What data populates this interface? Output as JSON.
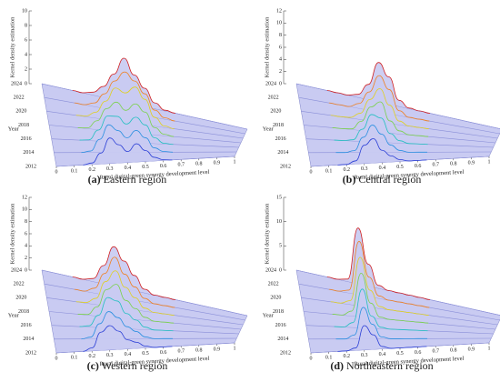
{
  "chart_data": [
    {
      "type": "ridgeline",
      "label": "(a)",
      "caption": "Eastern region",
      "zlabel": "Kernel density estimation",
      "ylabel": "Year",
      "xlabel": "Rural digital-green synergy development level",
      "fill": "#c9cbf2",
      "categories": [
        "2012",
        "2014",
        "2016",
        "2018",
        "2020",
        "2022",
        "2024"
      ],
      "x": [
        0.15,
        0.2,
        0.25,
        0.3,
        0.35,
        0.4,
        0.45,
        0.5,
        0.55,
        0.6,
        0.65
      ],
      "series": [
        {
          "color": "#2b3fd6",
          "values": [
            0,
            0.2,
            1.5,
            3.5,
            2.5,
            1.5,
            2.5,
            1.5,
            0.5,
            0.1,
            0
          ]
        },
        {
          "color": "#2a8fe0",
          "values": [
            0,
            0.2,
            1.8,
            3.8,
            3,
            2,
            3,
            2,
            0.6,
            0.1,
            0
          ]
        },
        {
          "color": "#22c0c0",
          "values": [
            0,
            0.1,
            1.5,
            3.5,
            3.5,
            2.5,
            3.5,
            2.5,
            0.8,
            0.1,
            0
          ]
        },
        {
          "color": "#7ad24a",
          "values": [
            0,
            0.1,
            1.2,
            3,
            4,
            3,
            4,
            3,
            1,
            0.2,
            0
          ]
        },
        {
          "color": "#e0d020",
          "values": [
            0,
            0.1,
            0.8,
            2.5,
            4.5,
            4,
            5,
            3.5,
            1.2,
            0.2,
            0
          ]
        },
        {
          "color": "#f08020",
          "values": [
            0,
            0,
            0.5,
            2,
            4,
            5.5,
            4.5,
            3,
            1,
            0.2,
            0
          ]
        },
        {
          "color": "#d02020",
          "values": [
            0,
            0,
            0.4,
            1.5,
            3.5,
            6,
            4,
            2.5,
            0.8,
            0.1,
            0
          ]
        }
      ],
      "xlim": [
        0,
        1
      ],
      "xticks": [
        0,
        0.1,
        0.2,
        0.3,
        0.4,
        0.5,
        0.6,
        0.7,
        0.8,
        0.9,
        1
      ],
      "zlim": [
        0,
        10
      ],
      "zticks": [
        0,
        2,
        4,
        6,
        8,
        10
      ]
    },
    {
      "type": "ridgeline",
      "label": "(b)",
      "caption": "Central region",
      "zlabel": "Kernel density estimation",
      "ylabel": "Year",
      "xlabel": "Rural digital-green synergy development level",
      "fill": "#c9cbf2",
      "categories": [
        "2012",
        "2014",
        "2016",
        "2018",
        "2020",
        "2022",
        "2024"
      ],
      "x": [
        0.15,
        0.2,
        0.25,
        0.3,
        0.35,
        0.4,
        0.45,
        0.5,
        0.55,
        0.6,
        0.65
      ],
      "series": [
        {
          "color": "#2b3fd6",
          "values": [
            0,
            0,
            0.5,
            3,
            4,
            2,
            1,
            0.3,
            0,
            0,
            0
          ]
        },
        {
          "color": "#2a8fe0",
          "values": [
            0,
            0,
            0.3,
            2.5,
            4.5,
            3,
            1.2,
            0.3,
            0,
            0,
            0
          ]
        },
        {
          "color": "#22c0c0",
          "values": [
            0,
            0,
            0.2,
            2,
            4.5,
            4,
            1.5,
            0.4,
            0,
            0,
            0
          ]
        },
        {
          "color": "#7ad24a",
          "values": [
            0,
            0,
            0.1,
            1.5,
            4,
            5,
            2,
            0.5,
            0,
            0,
            0
          ]
        },
        {
          "color": "#e0d020",
          "values": [
            0,
            0,
            0.1,
            1,
            3.5,
            5.5,
            3,
            0.6,
            0,
            0,
            0
          ]
        },
        {
          "color": "#f08020",
          "values": [
            0,
            0,
            0,
            0.8,
            3,
            6,
            4,
            0.8,
            0,
            0,
            0
          ]
        },
        {
          "color": "#d02020",
          "values": [
            0,
            0,
            0,
            0.5,
            2.5,
            6.5,
            4.5,
            1,
            0.1,
            0,
            0
          ]
        }
      ],
      "xlim": [
        0,
        1
      ],
      "xticks": [
        0,
        0.1,
        0.2,
        0.3,
        0.4,
        0.5,
        0.6,
        0.7,
        0.8,
        0.9,
        1
      ],
      "zlim": [
        0,
        12
      ],
      "zticks": [
        0,
        2,
        4,
        6,
        8,
        10,
        12
      ]
    },
    {
      "type": "ridgeline",
      "label": "(c)",
      "caption": "Western region",
      "zlabel": "Kernel density estimation",
      "ylabel": "Year",
      "xlabel": "Rural digital-green synergy development level",
      "fill": "#c9cbf2",
      "categories": [
        "2012",
        "2014",
        "2016",
        "2018",
        "2020",
        "2022",
        "2024"
      ],
      "x": [
        0.15,
        0.2,
        0.25,
        0.3,
        0.35,
        0.4,
        0.45,
        0.5,
        0.55,
        0.6,
        0.65
      ],
      "series": [
        {
          "color": "#2b3fd6",
          "values": [
            0,
            0.5,
            3,
            4,
            3,
            1.5,
            1,
            0.3,
            0,
            0,
            0
          ]
        },
        {
          "color": "#2a8fe0",
          "values": [
            0,
            0.3,
            2.5,
            4.5,
            3.5,
            2,
            1.2,
            0.3,
            0,
            0,
            0
          ]
        },
        {
          "color": "#22c0c0",
          "values": [
            0,
            0.2,
            2,
            5,
            4.5,
            2.5,
            1.5,
            0.4,
            0,
            0,
            0
          ]
        },
        {
          "color": "#7ad24a",
          "values": [
            0,
            0.1,
            1.5,
            4.5,
            5.5,
            3,
            1.8,
            0.5,
            0,
            0,
            0
          ]
        },
        {
          "color": "#e0d020",
          "values": [
            0,
            0.1,
            1,
            4,
            6,
            3.5,
            2,
            0.5,
            0,
            0,
            0
          ]
        },
        {
          "color": "#f08020",
          "values": [
            0,
            0,
            0.8,
            3.5,
            6.5,
            4,
            2.2,
            0.6,
            0,
            0,
            0
          ]
        },
        {
          "color": "#d02020",
          "values": [
            0,
            0,
            0.5,
            3,
            6.5,
            4.5,
            2.5,
            0.6,
            0,
            0,
            0
          ]
        }
      ],
      "xlim": [
        0,
        1
      ],
      "xticks": [
        0,
        0.1,
        0.2,
        0.3,
        0.4,
        0.5,
        0.6,
        0.7,
        0.8,
        0.9,
        1
      ],
      "zlim": [
        0,
        12
      ],
      "zticks": [
        0,
        2,
        4,
        6,
        8,
        10,
        12
      ]
    },
    {
      "type": "ridgeline",
      "label": "(d)",
      "caption": "Northeastern region",
      "zlabel": "Kernel density estimation",
      "ylabel": "Year",
      "xlabel": "Rural digital-green synergy development level",
      "fill": "#c9cbf2",
      "categories": [
        "2012",
        "2014",
        "2016",
        "2018",
        "2020",
        "2022",
        "2024"
      ],
      "x": [
        0.15,
        0.2,
        0.25,
        0.3,
        0.35,
        0.4,
        0.45,
        0.5,
        0.55,
        0.6,
        0.65
      ],
      "series": [
        {
          "color": "#2b3fd6",
          "values": [
            0,
            0,
            0.5,
            5,
            3,
            0.5,
            0,
            0,
            0,
            0,
            0
          ]
        },
        {
          "color": "#2a8fe0",
          "values": [
            0,
            0,
            0.8,
            6.5,
            3,
            0.4,
            0,
            0,
            0,
            0,
            0
          ]
        },
        {
          "color": "#22c0c0",
          "values": [
            0,
            0,
            1,
            8,
            2.5,
            0.3,
            0,
            0,
            0,
            0,
            0
          ]
        },
        {
          "color": "#7ad24a",
          "values": [
            0,
            0,
            1,
            9,
            3,
            0.3,
            0,
            0,
            0,
            0,
            0
          ]
        },
        {
          "color": "#e0d020",
          "values": [
            0,
            0,
            0.8,
            10,
            3.5,
            0.4,
            0,
            0,
            0,
            0,
            0
          ]
        },
        {
          "color": "#f08020",
          "values": [
            0,
            0,
            0.6,
            11,
            4,
            0.5,
            0,
            0,
            0,
            0,
            0
          ]
        },
        {
          "color": "#d02020",
          "values": [
            0,
            0,
            0.5,
            11.5,
            4.5,
            0.6,
            0,
            0,
            0,
            0,
            0
          ]
        }
      ],
      "xlim": [
        0,
        1
      ],
      "xticks": [
        0,
        0.1,
        0.2,
        0.3,
        0.4,
        0.5,
        0.6,
        0.7,
        0.8,
        0.9,
        1
      ],
      "zlim": [
        0,
        15
      ],
      "zticks": [
        0,
        5,
        10,
        15
      ]
    }
  ]
}
